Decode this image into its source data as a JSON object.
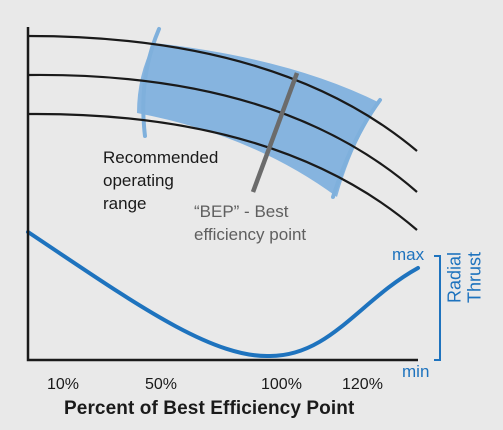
{
  "colors": {
    "background": "#e9e9e9",
    "curve": "#1a1a1a",
    "operating_range_fill": "#86b4df",
    "operating_range_edge": "#7fb0dc",
    "bep_line": "#6b6b6b",
    "radial_thrust": "#1e73be",
    "axis": "#1a1a1a"
  },
  "annotations": {
    "operating_range": [
      "Recommended",
      "operating",
      "range"
    ],
    "bep": [
      "“BEP” - Best",
      "efficiency point"
    ]
  },
  "x_axis": {
    "ticks": [
      "10%",
      "50%",
      "100%",
      "120%"
    ],
    "label": "Percent of Best Efficiency Point"
  },
  "radial_thrust": {
    "max_label": "max",
    "min_label": "min",
    "axis_title": [
      "Radial",
      "Thrust"
    ]
  }
}
